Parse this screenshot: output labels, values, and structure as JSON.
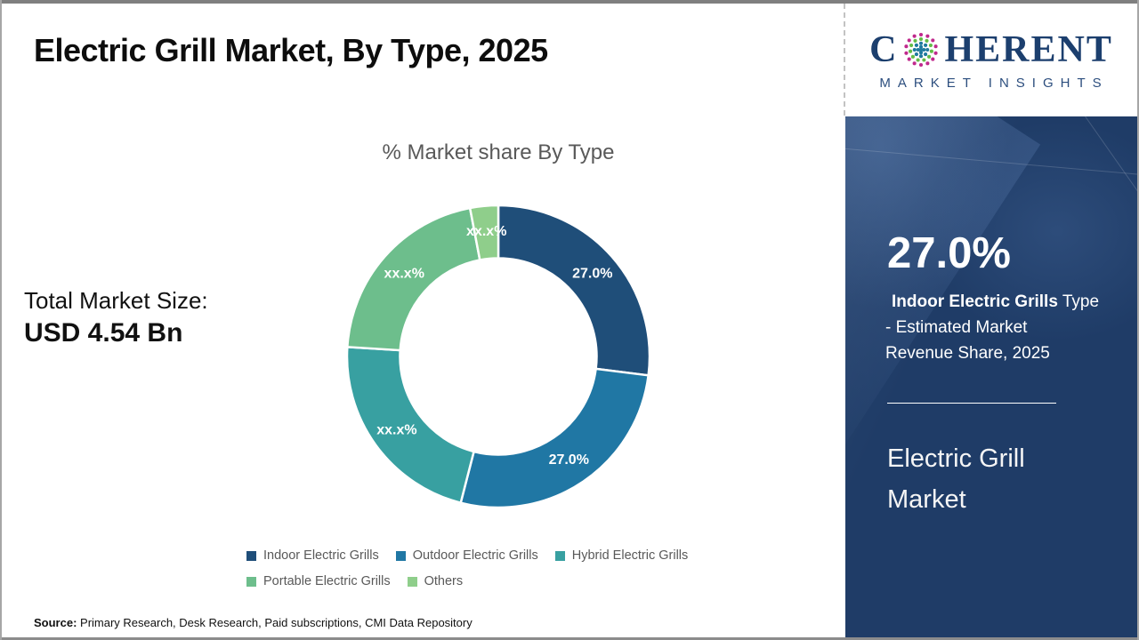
{
  "header": {
    "title": "Electric Grill Market, By Type, 2025"
  },
  "logo": {
    "word_part1": "C",
    "word_part2": "HERENT",
    "subtitle": "MARKET INSIGHTS",
    "globe_icon": "dotted-globe-icon",
    "navy": "#1c3f6e",
    "subtitle_navy": "#2c4e7e",
    "dot_colors": {
      "pink": "#c0298c",
      "green": "#62bc47",
      "teal": "#1f7a9e"
    }
  },
  "left_panel": {
    "total_label": "Total Market Size:",
    "total_value": "USD 4.54 Bn"
  },
  "chart_data": {
    "type": "donut",
    "title": "% Market share By Type",
    "start_angle_deg": 0,
    "inner_radius_ratio": 0.65,
    "legend_position": "bottom",
    "segments": [
      {
        "name": "Indoor Electric Grills",
        "value": 27.0,
        "label": "27.0%",
        "color": "#1f4e79"
      },
      {
        "name": "Outdoor Electric Grills",
        "value": 27.0,
        "label": "27.0%",
        "color": "#2077a4"
      },
      {
        "name": "Hybrid Electric Grills",
        "value": 22.0,
        "label": "xx.x%",
        "color": "#38a0a1"
      },
      {
        "name": "Portable Electric Grills",
        "value": 21.0,
        "label": "xx.x%",
        "color": "#6dbe8c"
      },
      {
        "name": "Others",
        "value": 3.0,
        "label": "xx.x%",
        "color": "#8fce8b"
      }
    ]
  },
  "sidebar": {
    "bg_color": "#1f3c67",
    "stat_value": "27.0%",
    "stat_line1_bold": "Indoor Electric Grills",
    "stat_line1_rest": " Type",
    "stat_line2": "- Estimated Market",
    "stat_line3": "Revenue Share, 2025",
    "market_name": "Electric Grill Market"
  },
  "footer": {
    "source_label": "Source:",
    "source_text": " Primary Research, Desk Research, Paid subscriptions, CMI Data Repository"
  }
}
